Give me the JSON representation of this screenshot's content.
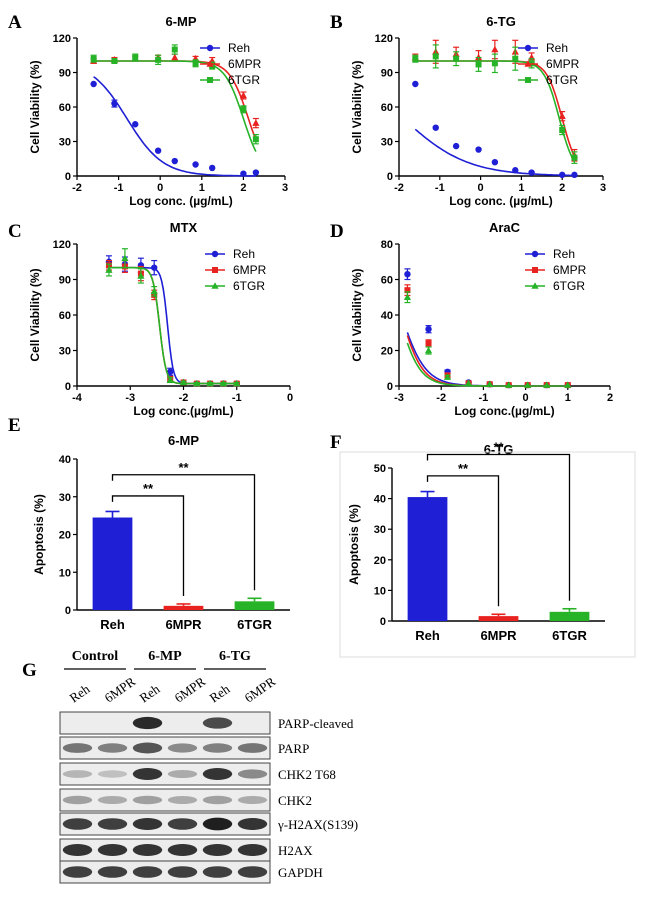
{
  "panel_labels": [
    "A",
    "B",
    "C",
    "D",
    "E",
    "F",
    "G"
  ],
  "colors": {
    "reh": "#1f1fd6",
    "mpr": "#e8231f",
    "tgr": "#27b327",
    "axis": "#000000"
  },
  "chart_data": [
    {
      "id": "A",
      "type": "line",
      "title": "6-MP",
      "xlabel": "Log conc. (µg/mL)",
      "ylabel": "Cell Viability (%)",
      "xlim": [
        -2,
        3
      ],
      "ylim": [
        0,
        120
      ],
      "xticks": [
        -2,
        -1,
        0,
        1,
        2,
        3
      ],
      "yticks": [
        0,
        30,
        60,
        90,
        120
      ],
      "legend": [
        "Reh",
        "6MPR",
        "6TGR"
      ],
      "series": [
        {
          "name": "Reh",
          "marker": "circle",
          "x": [
            -1.6,
            -1.1,
            -0.6,
            -0.05,
            0.35,
            0.85,
            1.25,
            2.0,
            2.3
          ],
          "y": [
            80,
            63,
            45,
            22,
            13,
            10,
            7,
            2,
            3
          ],
          "err": [
            0,
            3,
            0,
            0,
            0,
            0,
            0,
            0,
            0
          ],
          "fit": {
            "top": 100,
            "bottom": 0,
            "ic50": -0.8,
            "hill": 1.0
          }
        },
        {
          "name": "6MPR",
          "marker": "triangle",
          "x": [
            -1.6,
            -1.1,
            -0.6,
            -0.05,
            0.35,
            0.85,
            1.25,
            2.0,
            2.3
          ],
          "y": [
            100,
            101,
            102,
            103,
            103,
            102,
            100,
            70,
            46
          ],
          "err": [
            2,
            2,
            2,
            2,
            3,
            2,
            3,
            3,
            4
          ],
          "fit": {
            "top": 100,
            "bottom": 0,
            "ic50": 2.12,
            "hill": 1.9
          }
        },
        {
          "name": "6TGR",
          "marker": "square",
          "x": [
            -1.6,
            -1.1,
            -0.6,
            -0.05,
            0.35,
            0.85,
            1.25,
            2.0,
            2.3
          ],
          "y": [
            102,
            100,
            103,
            101,
            110,
            98,
            96,
            58,
            32
          ],
          "err": [
            3,
            2,
            3,
            4,
            4,
            3,
            3,
            3,
            4
          ],
          "fit": {
            "top": 100,
            "bottom": 0,
            "ic50": 2.0,
            "hill": 1.9
          }
        }
      ]
    },
    {
      "id": "B",
      "type": "line",
      "title": "6-TG",
      "xlabel": "Log conc. (µg/mL)",
      "ylabel": "Cell Viability (%)",
      "xlim": [
        -2,
        3
      ],
      "ylim": [
        0,
        120
      ],
      "xticks": [
        -2,
        -1,
        0,
        1,
        2,
        3
      ],
      "yticks": [
        0,
        30,
        60,
        90,
        120
      ],
      "legend": [
        "Reh",
        "6MPR",
        "6TGR"
      ],
      "series": [
        {
          "name": "Reh",
          "marker": "circle",
          "x": [
            -1.6,
            -1.1,
            -0.6,
            -0.05,
            0.35,
            0.85,
            1.25,
            2.0,
            2.3
          ],
          "y": [
            80,
            42,
            26,
            23,
            12,
            5,
            3,
            1,
            1
          ],
          "err": [
            0,
            0,
            0,
            0,
            0,
            0,
            0,
            0,
            0
          ],
          "fit": {
            "top": 100,
            "bottom": 0,
            "ic50": -1.9,
            "hill": 0.55
          }
        },
        {
          "name": "6MPR",
          "marker": "triangle",
          "x": [
            -1.6,
            -1.1,
            -0.6,
            -0.05,
            0.35,
            0.85,
            1.25,
            2.0,
            2.3
          ],
          "y": [
            103,
            108,
            106,
            103,
            110,
            108,
            103,
            52,
            18
          ],
          "err": [
            3,
            10,
            6,
            6,
            8,
            10,
            4,
            4,
            5
          ],
          "fit": {
            "top": 100,
            "bottom": 0,
            "ic50": 2.0,
            "hill": 2.3
          }
        },
        {
          "name": "6TGR",
          "marker": "square",
          "x": [
            -1.6,
            -1.1,
            -0.6,
            -0.05,
            0.35,
            0.85,
            1.25,
            2.0,
            2.3
          ],
          "y": [
            102,
            104,
            102,
            97,
            98,
            102,
            98,
            40,
            16
          ],
          "err": [
            3,
            10,
            6,
            6,
            8,
            10,
            4,
            4,
            5
          ],
          "fit": {
            "top": 100,
            "bottom": 0,
            "ic50": 1.93,
            "hill": 2.3
          }
        }
      ]
    },
    {
      "id": "C",
      "type": "line",
      "title": "MTX",
      "xlabel": "Log conc.(µg/mL)",
      "ylabel": "Cell Viability (%)",
      "xlim": [
        -4,
        0
      ],
      "ylim": [
        0,
        120
      ],
      "xticks": [
        -4,
        -3,
        -2,
        -1,
        0
      ],
      "yticks": [
        0,
        30,
        60,
        90,
        120
      ],
      "legend": [
        "Reh",
        "6MPR",
        "6TGR"
      ],
      "series": [
        {
          "name": "Reh",
          "marker": "circle",
          "x": [
            -3.4,
            -3.1,
            -2.8,
            -2.55,
            -2.25,
            -2.0,
            -1.75,
            -1.5,
            -1.25,
            -1.0
          ],
          "y": [
            105,
            103,
            102,
            100,
            12,
            3,
            2,
            2,
            2,
            2
          ],
          "err": [
            5,
            6,
            6,
            6,
            3,
            1,
            1,
            1,
            1,
            1
          ],
          "fit": {
            "top": 100,
            "bottom": 2,
            "ic50": -2.3,
            "hill": 8
          }
        },
        {
          "name": "6MPR",
          "marker": "square",
          "x": [
            -3.4,
            -3.1,
            -2.8,
            -2.55,
            -2.25,
            -2.0,
            -1.75,
            -1.5,
            -1.25,
            -1.0
          ],
          "y": [
            102,
            101,
            95,
            77,
            6,
            3,
            2,
            2,
            2,
            2
          ],
          "err": [
            4,
            5,
            6,
            4,
            2,
            1,
            1,
            1,
            1,
            1
          ],
          "fit": {
            "top": 100,
            "bottom": 2,
            "ic50": -2.45,
            "hill": 7
          }
        },
        {
          "name": "6TGR",
          "marker": "triangle",
          "x": [
            -3.4,
            -3.1,
            -2.8,
            -2.55,
            -2.25,
            -2.0,
            -1.75,
            -1.5,
            -1.25,
            -1.0
          ],
          "y": [
            98,
            108,
            93,
            80,
            5,
            3,
            2,
            2,
            2,
            2
          ],
          "err": [
            5,
            8,
            6,
            4,
            2,
            1,
            1,
            1,
            1,
            1
          ],
          "fit": {
            "top": 100,
            "bottom": 2,
            "ic50": -2.45,
            "hill": 7
          }
        }
      ]
    },
    {
      "id": "D",
      "type": "line",
      "title": "AraC",
      "xlabel": "Log conc.(µg/mL)",
      "ylabel": "Cell Viability (%)",
      "xlim": [
        -3,
        2
      ],
      "ylim": [
        0,
        80
      ],
      "xticks": [
        -3,
        -2,
        -1,
        0,
        1,
        2
      ],
      "yticks": [
        0,
        20,
        40,
        60,
        80
      ],
      "legend": [
        "Reh",
        "6MPR",
        "6TGR"
      ],
      "series": [
        {
          "name": "Reh",
          "marker": "circle",
          "x": [
            -2.8,
            -2.3,
            -1.85,
            -1.35,
            -0.85,
            -0.4,
            0.05,
            0.5,
            1.0
          ],
          "y": [
            63,
            32,
            8,
            2,
            1,
            0.5,
            0.5,
            0.5,
            0.5
          ],
          "err": [
            3,
            2,
            1,
            0,
            0,
            0,
            0,
            0,
            0
          ],
          "fit": {
            "top": 100,
            "bottom": 0,
            "ic50": -3.06,
            "hill": 1.4
          }
        },
        {
          "name": "6MPR",
          "marker": "square",
          "x": [
            -2.8,
            -2.3,
            -1.85,
            -1.35,
            -0.85,
            -0.4,
            0.05,
            0.5,
            1.0
          ],
          "y": [
            54,
            24,
            6,
            1.5,
            1,
            0.5,
            0.5,
            0.5,
            0.5
          ],
          "err": [
            3,
            2,
            1,
            0,
            0,
            0,
            0,
            0,
            0
          ],
          "fit": {
            "top": 100,
            "bottom": 0,
            "ic50": -3.05,
            "hill": 1.6
          }
        },
        {
          "name": "6TGR",
          "marker": "triangle",
          "x": [
            -2.8,
            -2.3,
            -1.85,
            -1.35,
            -0.85,
            -0.4,
            0.05,
            0.5,
            1.0
          ],
          "y": [
            50,
            20,
            5,
            1.5,
            1,
            0.5,
            0.5,
            0.5,
            0.5
          ],
          "err": [
            3,
            2,
            1,
            0,
            0,
            0,
            0,
            0,
            0
          ],
          "fit": {
            "top": 100,
            "bottom": 0,
            "ic50": -3.1,
            "hill": 1.65
          }
        }
      ]
    },
    {
      "id": "E",
      "type": "bar",
      "title": "6-MP",
      "ylabel": "Apoptosis (%)",
      "categories": [
        "Reh",
        "6MPR",
        "6TGR"
      ],
      "values": [
        24.5,
        1.1,
        2.3
      ],
      "errors": [
        1.6,
        0.5,
        0.8
      ],
      "ylim": [
        0,
        40
      ],
      "yticks": [
        0,
        10,
        20,
        30,
        40
      ],
      "significance": [
        {
          "from": 0,
          "to": 1,
          "label": "**"
        },
        {
          "from": 0,
          "to": 2,
          "label": "**"
        }
      ]
    },
    {
      "id": "F",
      "type": "bar",
      "title": "6-TG",
      "ylabel": "Apoptosis (%)",
      "categories": [
        "Reh",
        "6MPR",
        "6TGR"
      ],
      "values": [
        40.5,
        1.6,
        3.0
      ],
      "errors": [
        1.8,
        0.6,
        1.0
      ],
      "ylim": [
        0,
        50
      ],
      "yticks": [
        0,
        10,
        20,
        30,
        40,
        50
      ],
      "significance": [
        {
          "from": 0,
          "to": 1,
          "label": "**"
        },
        {
          "from": 0,
          "to": 2,
          "label": "**"
        }
      ]
    }
  ],
  "western": {
    "groups": [
      "Control",
      "6-MP",
      "6-TG"
    ],
    "lanes": [
      "Reh",
      "6MPR",
      "Reh",
      "6MPR",
      "Reh",
      "6MPR"
    ],
    "rows": [
      {
        "label": "PARP-cleaved",
        "intensity": [
          0,
          0,
          0.9,
          0,
          0.75,
          0
        ]
      },
      {
        "label": "PARP",
        "intensity": [
          0.55,
          0.5,
          0.7,
          0.45,
          0.5,
          0.55
        ]
      },
      {
        "label": "CHK2 T68",
        "intensity": [
          0.25,
          0.2,
          0.85,
          0.3,
          0.85,
          0.45
        ]
      },
      {
        "label": "CHK2",
        "intensity": [
          0.35,
          0.3,
          0.35,
          0.3,
          0.35,
          0.3
        ]
      },
      {
        "label": "γ-H2AX(S139)",
        "intensity": [
          0.8,
          0.8,
          0.85,
          0.8,
          0.95,
          0.85
        ]
      },
      {
        "label": "H2AX",
        "intensity": [
          0.85,
          0.85,
          0.85,
          0.85,
          0.85,
          0.85
        ]
      },
      {
        "label": "GAPDH",
        "intensity": [
          0.8,
          0.8,
          0.8,
          0.8,
          0.8,
          0.8
        ]
      }
    ]
  }
}
